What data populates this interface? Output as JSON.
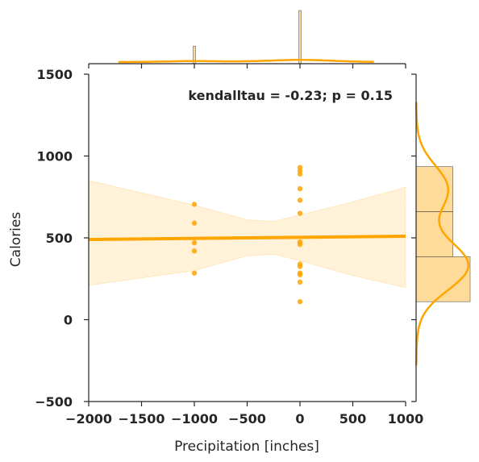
{
  "chart_data": {
    "type": "scatter",
    "title": "",
    "xlabel": "Precipitation [inches]",
    "ylabel": "Calories",
    "xlim": [
      -2000,
      1000
    ],
    "ylim": [
      -500,
      1500
    ],
    "xticks": [
      -2000,
      -1500,
      -1000,
      -500,
      0,
      500,
      1000
    ],
    "yticks": [
      -500,
      0,
      500,
      1000,
      1500
    ],
    "xtick_labels": [
      "−2000",
      "−1500",
      "−1000",
      "−500",
      "0",
      "500",
      "1000"
    ],
    "ytick_labels": [
      "−500",
      "0",
      "500",
      "1000",
      "1500"
    ],
    "annotation": "kendalltau = -0.23; p = 0.15",
    "color": "#ffa500",
    "points": [
      {
        "x": -1000,
        "y": 705
      },
      {
        "x": -1000,
        "y": 590
      },
      {
        "x": -1000,
        "y": 470
      },
      {
        "x": -1000,
        "y": 420
      },
      {
        "x": -1000,
        "y": 285
      },
      {
        "x": 0,
        "y": 930
      },
      {
        "x": 0,
        "y": 910
      },
      {
        "x": 0,
        "y": 890
      },
      {
        "x": 0,
        "y": 800
      },
      {
        "x": 0,
        "y": 730
      },
      {
        "x": 0,
        "y": 650
      },
      {
        "x": 0,
        "y": 475
      },
      {
        "x": 0,
        "y": 460
      },
      {
        "x": 0,
        "y": 340
      },
      {
        "x": 0,
        "y": 325
      },
      {
        "x": 0,
        "y": 285
      },
      {
        "x": 0,
        "y": 275
      },
      {
        "x": 0,
        "y": 230
      },
      {
        "x": 0,
        "y": 110
      }
    ],
    "regression": {
      "x": [
        -2000,
        1000
      ],
      "y": [
        490,
        510
      ]
    },
    "confidence_band": {
      "x": [
        -2000,
        -1000,
        -500,
        -250,
        0,
        500,
        1000
      ],
      "upper": [
        850,
        700,
        610,
        600,
        640,
        720,
        810
      ],
      "lower": [
        210,
        300,
        390,
        400,
        360,
        270,
        195
      ]
    },
    "marginal_x": {
      "bins": [
        {
          "x0": -1010,
          "x1": -990,
          "height": 0.33
        },
        {
          "x0": -10,
          "x1": 10,
          "height": 1.0
        }
      ],
      "kde_range": [
        -1720,
        700
      ]
    },
    "marginal_y": {
      "bins": [
        {
          "y0": 660,
          "y1": 935,
          "width": 0.68
        },
        {
          "y0": 385,
          "y1": 660,
          "width": 0.68
        },
        {
          "y0": 110,
          "y1": 385,
          "width": 1.0
        }
      ],
      "kde_range": [
        -280,
        1330
      ]
    }
  }
}
